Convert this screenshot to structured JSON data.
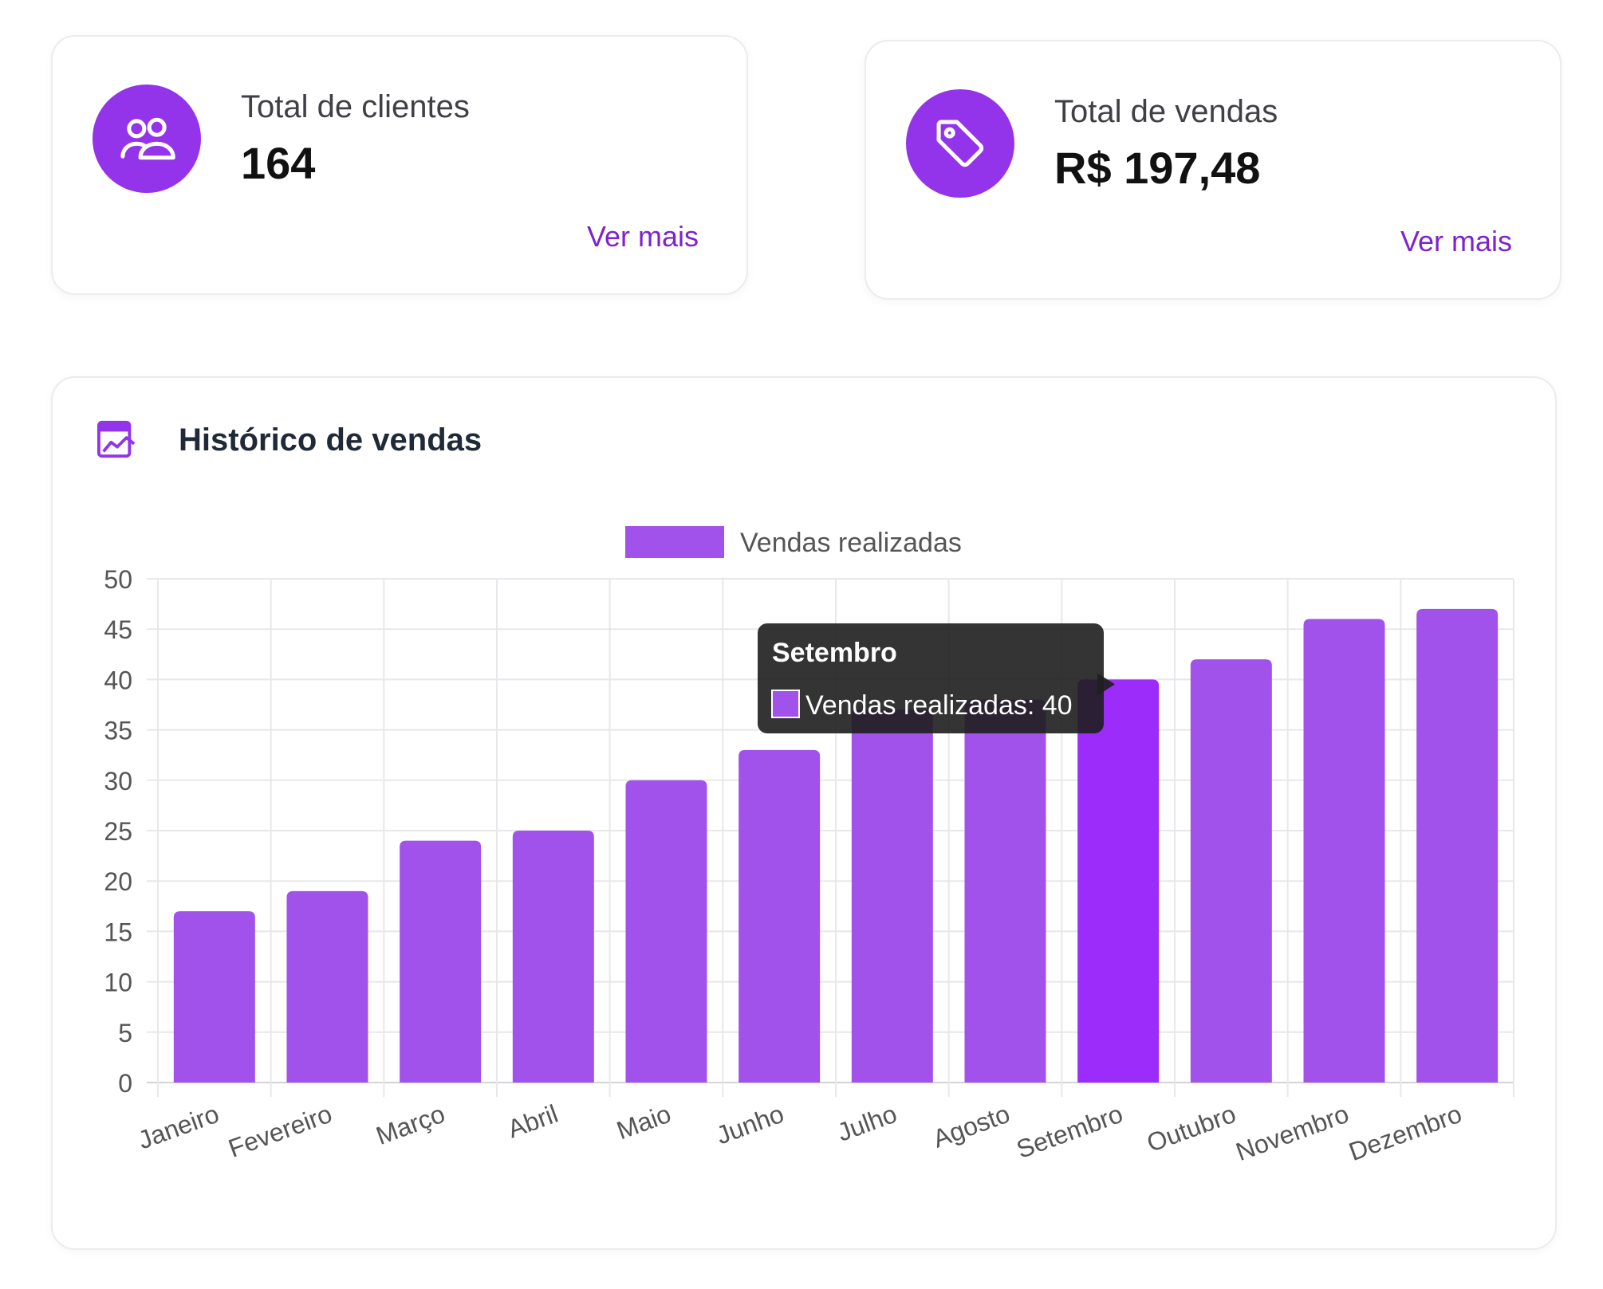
{
  "cards": [
    {
      "label": "Total de clientes",
      "value": "164",
      "link": "Ver mais",
      "icon": "users-icon"
    },
    {
      "label": "Total de vendas",
      "value": "R$ 197,48",
      "link": "Ver mais",
      "icon": "tag-icon"
    }
  ],
  "chart_panel": {
    "title": "Histórico de vendas",
    "icon": "chart-line-icon"
  },
  "colors": {
    "accent": "#9333ea",
    "bar": "#a152ea",
    "bar_active": "#9b2cfa",
    "link": "#7e22ce"
  },
  "chart_data": {
    "type": "bar",
    "categories": [
      "Janeiro",
      "Fevereiro",
      "Março",
      "Abril",
      "Maio",
      "Junho",
      "Julho",
      "Agosto",
      "Setembro",
      "Outubro",
      "Novembro",
      "Dezembro"
    ],
    "series": [
      {
        "name": "Vendas realizadas",
        "values": [
          17,
          19,
          24,
          25,
          30,
          33,
          37,
          38,
          40,
          42,
          46,
          47
        ]
      }
    ],
    "ylim": [
      0,
      50
    ],
    "yticks": [
      0,
      5,
      10,
      15,
      20,
      25,
      30,
      35,
      40,
      45,
      50
    ],
    "legend_position": "top",
    "grid": true,
    "tooltip": {
      "title": "Setembro",
      "label": "Vendas realizadas: 40",
      "category_index": 8
    }
  }
}
